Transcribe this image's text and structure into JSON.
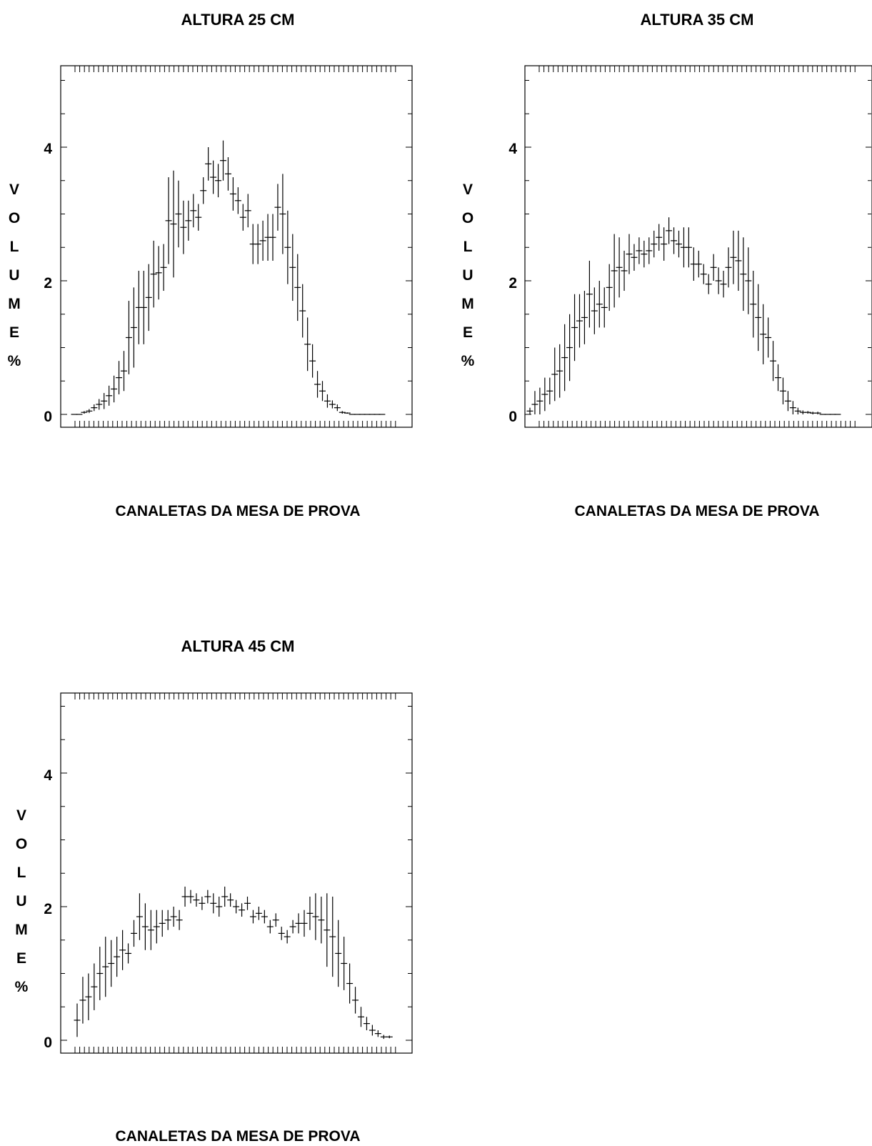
{
  "chart_data": [
    {
      "type": "scatter",
      "title": "ALTURA 25 CM",
      "xlabel": "CANALETAS DA MESA DE PROVA",
      "ylabel_letters": [
        "V",
        "O",
        "L",
        "U",
        "M",
        "E",
        "%"
      ],
      "ylim": [
        0,
        5
      ],
      "yticks": [
        "0",
        "2",
        "4"
      ],
      "grid": false,
      "values": [
        0,
        0,
        0.03,
        0.05,
        0.1,
        0.15,
        0.2,
        0.28,
        0.38,
        0.55,
        0.65,
        1.15,
        1.3,
        1.6,
        1.6,
        1.75,
        2.1,
        2.12,
        2.2,
        2.9,
        2.85,
        3.0,
        2.8,
        2.9,
        3.05,
        2.95,
        3.35,
        3.75,
        3.55,
        3.5,
        3.8,
        3.6,
        3.3,
        3.2,
        2.95,
        3.05,
        2.55,
        2.55,
        2.6,
        2.65,
        2.65,
        3.1,
        3.0,
        2.5,
        2.2,
        1.9,
        1.55,
        1.05,
        0.8,
        0.45,
        0.35,
        0.2,
        0.15,
        0.1,
        0.03,
        0.02,
        0,
        0,
        0,
        0,
        0,
        0,
        0
      ],
      "errors": [
        0,
        0,
        0.02,
        0.03,
        0.05,
        0.08,
        0.12,
        0.15,
        0.2,
        0.25,
        0.3,
        0.55,
        0.6,
        0.55,
        0.55,
        0.5,
        0.5,
        0.4,
        0.35,
        0.65,
        0.8,
        0.5,
        0.4,
        0.3,
        0.25,
        0.2,
        0.2,
        0.25,
        0.25,
        0.25,
        0.3,
        0.25,
        0.25,
        0.2,
        0.2,
        0.25,
        0.3,
        0.3,
        0.3,
        0.35,
        0.35,
        0.35,
        0.6,
        0.55,
        0.5,
        0.5,
        0.4,
        0.4,
        0.25,
        0.2,
        0.15,
        0.1,
        0.06,
        0.05,
        0.02,
        0.01,
        0,
        0,
        0,
        0,
        0,
        0,
        0
      ]
    },
    {
      "type": "scatter",
      "title": "ALTURA 35 CM",
      "xlabel": "CANALETAS DA MESA DE PROVA",
      "ylabel_letters": [
        "V",
        "O",
        "L",
        "U",
        "M",
        "E",
        "%"
      ],
      "ylim": [
        0,
        5
      ],
      "yticks": [
        "0",
        "2",
        "4"
      ],
      "grid": false,
      "values": [
        0.05,
        0.15,
        0.2,
        0.3,
        0.35,
        0.6,
        0.65,
        0.85,
        1.0,
        1.3,
        1.4,
        1.45,
        1.8,
        1.55,
        1.65,
        1.6,
        1.9,
        2.15,
        2.2,
        2.15,
        2.4,
        2.35,
        2.45,
        2.4,
        2.45,
        2.55,
        2.65,
        2.55,
        2.75,
        2.6,
        2.55,
        2.5,
        2.5,
        2.25,
        2.25,
        2.1,
        1.95,
        2.2,
        2.0,
        1.95,
        2.2,
        2.35,
        2.3,
        2.1,
        2.0,
        1.65,
        1.45,
        1.2,
        1.15,
        0.8,
        0.55,
        0.35,
        0.2,
        0.1,
        0.05,
        0.03,
        0.03,
        0.02,
        0.02,
        0,
        0,
        0,
        0
      ],
      "errors": [
        0.05,
        0.2,
        0.2,
        0.25,
        0.2,
        0.4,
        0.4,
        0.5,
        0.5,
        0.5,
        0.4,
        0.4,
        0.5,
        0.35,
        0.35,
        0.3,
        0.35,
        0.55,
        0.45,
        0.3,
        0.3,
        0.2,
        0.2,
        0.2,
        0.2,
        0.2,
        0.2,
        0.25,
        0.2,
        0.2,
        0.2,
        0.3,
        0.3,
        0.25,
        0.2,
        0.15,
        0.15,
        0.2,
        0.2,
        0.2,
        0.3,
        0.4,
        0.45,
        0.55,
        0.5,
        0.5,
        0.5,
        0.45,
        0.3,
        0.3,
        0.2,
        0.2,
        0.15,
        0.1,
        0.05,
        0.03,
        0.02,
        0.02,
        0.02,
        0,
        0,
        0,
        0
      ]
    },
    {
      "type": "scatter",
      "title": "ALTURA 45 CM",
      "xlabel": "CANALETAS DA MESA DE PROVA",
      "ylabel_letters": [
        "V",
        "O",
        "L",
        "U",
        "M",
        "E",
        "%"
      ],
      "ylim": [
        0,
        5
      ],
      "yticks": [
        "0",
        "2",
        "4"
      ],
      "grid": false,
      "values": [
        0.3,
        0.6,
        0.65,
        0.8,
        1.0,
        1.1,
        1.15,
        1.25,
        1.35,
        1.3,
        1.6,
        1.85,
        1.7,
        1.65,
        1.7,
        1.75,
        1.8,
        1.85,
        1.8,
        2.15,
        2.15,
        2.1,
        2.05,
        2.15,
        2.05,
        2.0,
        2.15,
        2.1,
        2.0,
        1.95,
        2.05,
        1.85,
        1.9,
        1.85,
        1.7,
        1.8,
        1.6,
        1.55,
        1.7,
        1.75,
        1.75,
        1.9,
        1.85,
        1.8,
        1.65,
        1.55,
        1.3,
        1.15,
        0.85,
        0.6,
        0.35,
        0.25,
        0.15,
        0.1,
        0.05,
        0.05
      ],
      "errors": [
        0.25,
        0.35,
        0.35,
        0.35,
        0.4,
        0.45,
        0.35,
        0.3,
        0.3,
        0.15,
        0.2,
        0.35,
        0.35,
        0.3,
        0.25,
        0.2,
        0.15,
        0.15,
        0.15,
        0.15,
        0.1,
        0.1,
        0.1,
        0.1,
        0.15,
        0.15,
        0.15,
        0.1,
        0.1,
        0.1,
        0.1,
        0.1,
        0.1,
        0.1,
        0.1,
        0.1,
        0.1,
        0.1,
        0.1,
        0.15,
        0.2,
        0.25,
        0.35,
        0.35,
        0.55,
        0.6,
        0.5,
        0.4,
        0.3,
        0.2,
        0.15,
        0.1,
        0.08,
        0.05,
        0.03,
        0.02
      ]
    }
  ]
}
